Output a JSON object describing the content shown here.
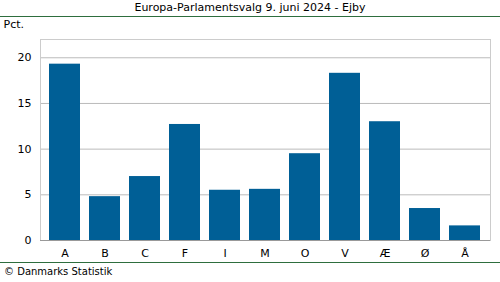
{
  "chart_data": {
    "type": "bar",
    "title": "Europa-Parlamentsvalg 9. juni 2024 - Ejby",
    "y_label": "Pct.",
    "caption": "© Danmarks Statistik",
    "categories": [
      "A",
      "B",
      "C",
      "F",
      "I",
      "M",
      "O",
      "V",
      "Æ",
      "Ø",
      "Å"
    ],
    "values": [
      19.3,
      4.8,
      7.0,
      12.7,
      5.5,
      5.6,
      9.5,
      18.3,
      13.0,
      3.5,
      1.6
    ],
    "color": "#005f96",
    "ylim": [
      0,
      22
    ],
    "yticks": [
      0,
      5,
      10,
      15,
      20
    ],
    "grid": true
  }
}
